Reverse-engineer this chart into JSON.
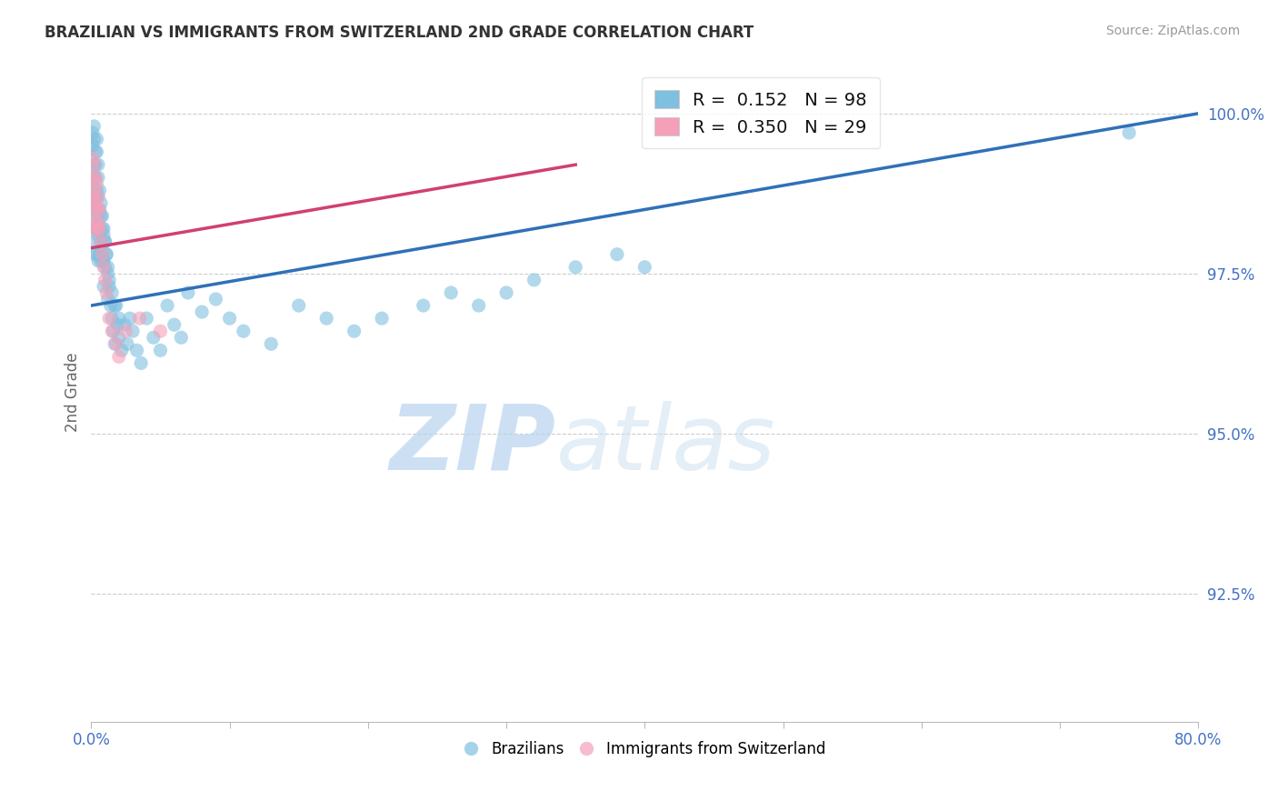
{
  "title": "BRAZILIAN VS IMMIGRANTS FROM SWITZERLAND 2ND GRADE CORRELATION CHART",
  "source": "Source: ZipAtlas.com",
  "ylabel": "2nd Grade",
  "xlim": [
    0.0,
    0.8
  ],
  "ylim": [
    0.905,
    1.008
  ],
  "xticks": [
    0.0,
    0.1,
    0.2,
    0.3,
    0.4,
    0.5,
    0.6,
    0.7,
    0.8
  ],
  "xticklabels": [
    "0.0%",
    "",
    "",
    "",
    "",
    "",
    "",
    "",
    "80.0%"
  ],
  "yticks": [
    0.925,
    0.95,
    0.975,
    1.0
  ],
  "yticklabels": [
    "92.5%",
    "95.0%",
    "97.5%",
    "100.0%"
  ],
  "blue_R": 0.152,
  "blue_N": 98,
  "pink_R": 0.35,
  "pink_N": 29,
  "blue_color": "#7fbfdf",
  "pink_color": "#f5a0b8",
  "blue_line_color": "#3070b8",
  "pink_line_color": "#d04070",
  "grid_color": "#c8c8c8",
  "title_color": "#333333",
  "axis_label_color": "#666666",
  "tick_color": "#4472c4",
  "watermark_zip": "ZIP",
  "watermark_atlas": "atlas",
  "legend_blue_label": "Brazilians",
  "legend_pink_label": "Immigrants from Switzerland",
  "blue_line_x0": 0.0,
  "blue_line_y0": 0.97,
  "blue_line_x1": 0.8,
  "blue_line_y1": 1.0,
  "pink_line_x0": 0.0,
  "pink_line_y0": 0.979,
  "pink_line_x1": 0.35,
  "pink_line_y1": 0.992,
  "blue_x": [
    0.001,
    0.001,
    0.001,
    0.002,
    0.002,
    0.002,
    0.002,
    0.002,
    0.003,
    0.003,
    0.003,
    0.003,
    0.003,
    0.004,
    0.004,
    0.004,
    0.004,
    0.005,
    0.005,
    0.005,
    0.005,
    0.006,
    0.006,
    0.006,
    0.007,
    0.007,
    0.007,
    0.008,
    0.008,
    0.009,
    0.009,
    0.009,
    0.01,
    0.01,
    0.011,
    0.012,
    0.012,
    0.013,
    0.014,
    0.015,
    0.016,
    0.017,
    0.018,
    0.019,
    0.02,
    0.022,
    0.024,
    0.026,
    0.028,
    0.03,
    0.033,
    0.036,
    0.04,
    0.045,
    0.05,
    0.055,
    0.06,
    0.065,
    0.07,
    0.08,
    0.09,
    0.1,
    0.11,
    0.13,
    0.15,
    0.17,
    0.19,
    0.21,
    0.24,
    0.26,
    0.28,
    0.3,
    0.32,
    0.35,
    0.38,
    0.4,
    0.001,
    0.001,
    0.002,
    0.002,
    0.003,
    0.003,
    0.004,
    0.004,
    0.005,
    0.005,
    0.006,
    0.007,
    0.008,
    0.009,
    0.01,
    0.011,
    0.012,
    0.013,
    0.015,
    0.017,
    0.02,
    0.75
  ],
  "blue_y": [
    0.99,
    0.988,
    0.985,
    0.992,
    0.988,
    0.986,
    0.983,
    0.98,
    0.99,
    0.987,
    0.985,
    0.982,
    0.978,
    0.988,
    0.985,
    0.982,
    0.978,
    0.987,
    0.984,
    0.981,
    0.977,
    0.985,
    0.982,
    0.978,
    0.984,
    0.98,
    0.977,
    0.982,
    0.978,
    0.981,
    0.977,
    0.973,
    0.98,
    0.976,
    0.978,
    0.975,
    0.971,
    0.973,
    0.97,
    0.968,
    0.966,
    0.964,
    0.97,
    0.967,
    0.965,
    0.963,
    0.967,
    0.964,
    0.968,
    0.966,
    0.963,
    0.961,
    0.968,
    0.965,
    0.963,
    0.97,
    0.967,
    0.965,
    0.972,
    0.969,
    0.971,
    0.968,
    0.966,
    0.964,
    0.97,
    0.968,
    0.966,
    0.968,
    0.97,
    0.972,
    0.97,
    0.972,
    0.974,
    0.976,
    0.978,
    0.976,
    0.997,
    0.995,
    0.998,
    0.996,
    0.994,
    0.992,
    0.996,
    0.994,
    0.992,
    0.99,
    0.988,
    0.986,
    0.984,
    0.982,
    0.98,
    0.978,
    0.976,
    0.974,
    0.972,
    0.97,
    0.968,
    0.997
  ],
  "pink_x": [
    0.001,
    0.001,
    0.001,
    0.002,
    0.002,
    0.002,
    0.002,
    0.003,
    0.003,
    0.003,
    0.004,
    0.004,
    0.004,
    0.005,
    0.005,
    0.006,
    0.006,
    0.007,
    0.008,
    0.009,
    0.01,
    0.011,
    0.013,
    0.015,
    0.018,
    0.02,
    0.025,
    0.035,
    0.05
  ],
  "pink_y": [
    0.993,
    0.99,
    0.987,
    0.992,
    0.988,
    0.985,
    0.982,
    0.99,
    0.986,
    0.983,
    0.989,
    0.985,
    0.982,
    0.987,
    0.983,
    0.985,
    0.982,
    0.98,
    0.978,
    0.976,
    0.974,
    0.972,
    0.968,
    0.966,
    0.964,
    0.962,
    0.966,
    0.968,
    0.966
  ]
}
